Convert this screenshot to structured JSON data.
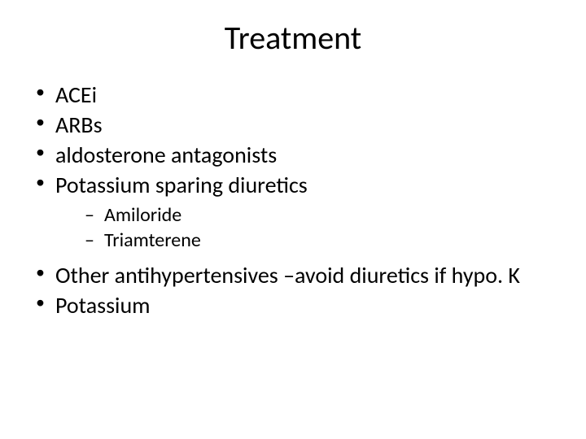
{
  "slide": {
    "title": "Treatment",
    "bullets": {
      "level1": [
        "ACEi",
        "ARBs",
        "aldosterone antagonists",
        "Potassium sparing diuretics"
      ],
      "level2": [
        "Amiloride",
        "Triamterene"
      ],
      "level1b": [
        "Other antihypertensives –avoid diuretics if hypo. K",
        "Potassium"
      ]
    }
  },
  "style": {
    "background_color": "#ffffff",
    "text_color": "#000000",
    "title_fontsize": 40,
    "level1_fontsize": 28,
    "level2_fontsize": 24,
    "font_family": "Calibri"
  }
}
